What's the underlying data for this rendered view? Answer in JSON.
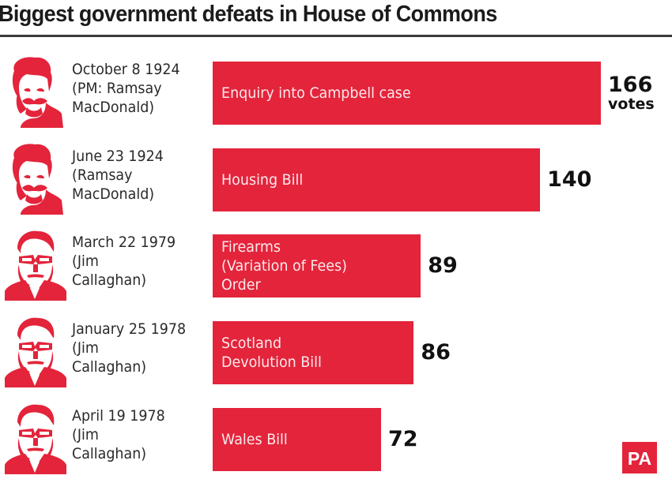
{
  "title": "Biggest government defeats in House of Commons",
  "colors": {
    "bar": "#e3243b",
    "portrait": "#e3243b",
    "text": "#1a1a1a"
  },
  "brand": "PA",
  "chart_data": {
    "type": "bar",
    "orientation": "horizontal",
    "title": "Biggest government defeats in House of Commons",
    "xlabel": "",
    "ylabel": "",
    "unit_label": "votes",
    "xlim": [
      0,
      166
    ],
    "grid": false,
    "categories": [
      "Enquiry into Campbell case",
      "Housing Bill",
      "Firearms\n(Variation of Fees)\nOrder",
      "Scotland\nDevolution Bill",
      "Wales Bill"
    ],
    "values": [
      166,
      140,
      89,
      86,
      72
    ],
    "rows": [
      {
        "date": "October 8 1924",
        "pm_line1": "(PM: Ramsay",
        "pm_line2": "MacDonald)",
        "portrait": "ramsay-macdonald-portrait",
        "label": "Enquiry into Campbell case",
        "value": 166,
        "value_text": "166",
        "unit": "votes"
      },
      {
        "date": "June 23 1924",
        "pm_line1": "(Ramsay",
        "pm_line2": "MacDonald)",
        "portrait": "ramsay-macdonald-portrait",
        "label": "Housing Bill",
        "value": 140,
        "value_text": "140",
        "unit": ""
      },
      {
        "date": "March 22 1979",
        "pm_line1": "(Jim",
        "pm_line2": "Callaghan)",
        "portrait": "jim-callaghan-portrait",
        "label": "Firearms\n(Variation of Fees)\nOrder",
        "value": 89,
        "value_text": "89",
        "unit": ""
      },
      {
        "date": "January 25 1978",
        "pm_line1": "(Jim",
        "pm_line2": "Callaghan)",
        "portrait": "jim-callaghan-portrait",
        "label": "Scotland\nDevolution Bill",
        "value": 86,
        "value_text": "86",
        "unit": ""
      },
      {
        "date": "April 19 1978",
        "pm_line1": "(Jim",
        "pm_line2": "Callaghan)",
        "portrait": "jim-callaghan-portrait",
        "label": "Wales Bill",
        "value": 72,
        "value_text": "72",
        "unit": ""
      }
    ]
  }
}
